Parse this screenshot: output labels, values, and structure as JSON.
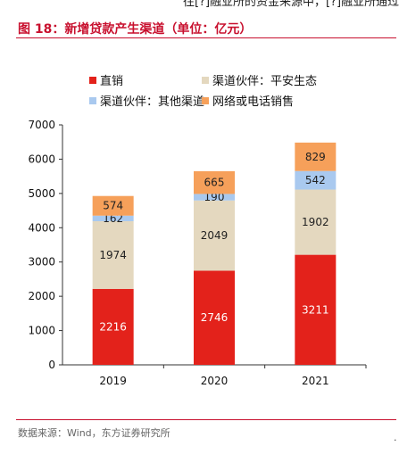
{
  "header": {
    "cropped_text": "往[?]融业所的资金来源中，[?]融业所通过",
    "figure_title": "图 18：新增贷款产生渠道（单位：亿元）"
  },
  "chart_data": {
    "type": "bar",
    "stacked": true,
    "title": "",
    "xlabel": "",
    "ylabel": "",
    "categories": [
      "2019",
      "2020",
      "2021"
    ],
    "ylim": [
      0,
      7000
    ],
    "yticks": [
      "0",
      "1000",
      "2000",
      "3000",
      "4000",
      "5000",
      "6000",
      "7000"
    ],
    "grid": false,
    "legend_position": "top",
    "series": [
      {
        "name": "直销",
        "values": [
          2216,
          2746,
          3211
        ],
        "color": "#e3221b",
        "label_color": "#ffffff"
      },
      {
        "name": "渠道伙伴：平安生态",
        "values": [
          1974,
          2049,
          1902
        ],
        "color": "#e4d8bf",
        "label_color": "#222222"
      },
      {
        "name": "渠道伙伴：其他渠道",
        "values": [
          162,
          190,
          542
        ],
        "color": "#a9c9ef",
        "label_color": "#222222"
      },
      {
        "name": "网络或电话销售",
        "values": [
          574,
          665,
          829
        ],
        "color": "#f6a05a",
        "label_color": "#222222"
      }
    ],
    "data_labels": [
      [
        "2216",
        "2746",
        "3211"
      ],
      [
        "1974",
        "2049",
        "1902"
      ],
      [
        "162",
        "190",
        "542"
      ],
      [
        "574",
        "665",
        "829"
      ]
    ]
  },
  "footer": {
    "source": "数据来源：Wind，东方证券研究所",
    "edge_mark": "·"
  }
}
